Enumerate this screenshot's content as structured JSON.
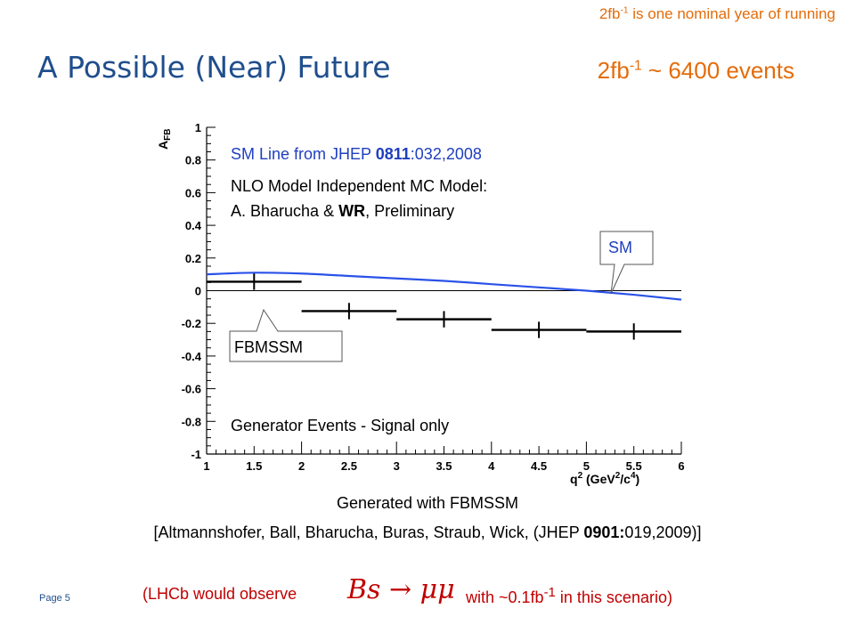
{
  "slide": {
    "title": "A Possible (Near) Future",
    "note_prefix": "2fb",
    "note_sup": "-1",
    "note_suffix": " is one nominal year of running",
    "events_prefix": "2fb",
    "events_sup": "-1",
    "events_suffix": " ~ 6400 events",
    "generated_with": "Generated with FBMSSM",
    "citation_pre": "[Altmannshofer, Ball, Bharucha, Buras, Straub, Wick, (JHEP ",
    "citation_bold": "0901:",
    "citation_post": "019,2009)]",
    "footer_pre": "(LHCb would observe",
    "footer_formula": "Bs → μμ",
    "footer_post_a": "with ~0.1fb",
    "footer_post_sup": "-1",
    "footer_post_b": " in this scenario)",
    "page_label": "Page 5"
  },
  "chart_data": {
    "type": "line",
    "ylabel": "AFB",
    "xlabel": "q² (GeV²/c⁴)",
    "xlim": [
      1,
      6
    ],
    "ylim": [
      -1,
      1
    ],
    "x_ticks": [
      "1",
      "1.5",
      "2",
      "2.5",
      "3",
      "3.5",
      "4",
      "4.5",
      "5",
      "5.5",
      "6"
    ],
    "y_ticks": [
      "-1",
      "-0.8",
      "-0.6",
      "-0.4",
      "-0.2",
      "0",
      "0.2",
      "0.4",
      "0.6",
      "0.8",
      "1"
    ],
    "annotations": {
      "sm_line_pre": "SM Line from JHEP ",
      "sm_line_bold": "0811",
      "sm_line_post": ":032,2008",
      "nlo_line1": "NLO Model Independent MC Model:",
      "nlo_line2_pre": "A. Bharucha & ",
      "nlo_line2_bold": "WR",
      "nlo_line2_post": ", Preliminary",
      "generator": "Generator Events - Signal only",
      "callout_sm": "SM",
      "callout_fbmssm": "FBMSSM"
    },
    "series": [
      {
        "name": "SM",
        "color": "#2a52e8",
        "x": [
          1.0,
          1.5,
          2.0,
          2.5,
          3.0,
          3.5,
          4.0,
          4.5,
          5.0,
          5.5,
          6.0
        ],
        "y": [
          0.1,
          0.11,
          0.105,
          0.09,
          0.075,
          0.06,
          0.04,
          0.02,
          0.0,
          -0.025,
          -0.055
        ]
      },
      {
        "name": "FBMSSM",
        "color": "#000000",
        "bins": [
          {
            "x0": 1.0,
            "x1": 2.0,
            "y": 0.055,
            "err": 0.05
          },
          {
            "x0": 2.0,
            "x1": 3.0,
            "y": -0.125,
            "err": 0.05
          },
          {
            "x0": 3.0,
            "x1": 4.0,
            "y": -0.175,
            "err": 0.05
          },
          {
            "x0": 4.0,
            "x1": 5.0,
            "y": -0.24,
            "err": 0.05
          },
          {
            "x0": 5.0,
            "x1": 6.0,
            "y": -0.25,
            "err": 0.05
          }
        ]
      }
    ],
    "zero_line": true
  }
}
